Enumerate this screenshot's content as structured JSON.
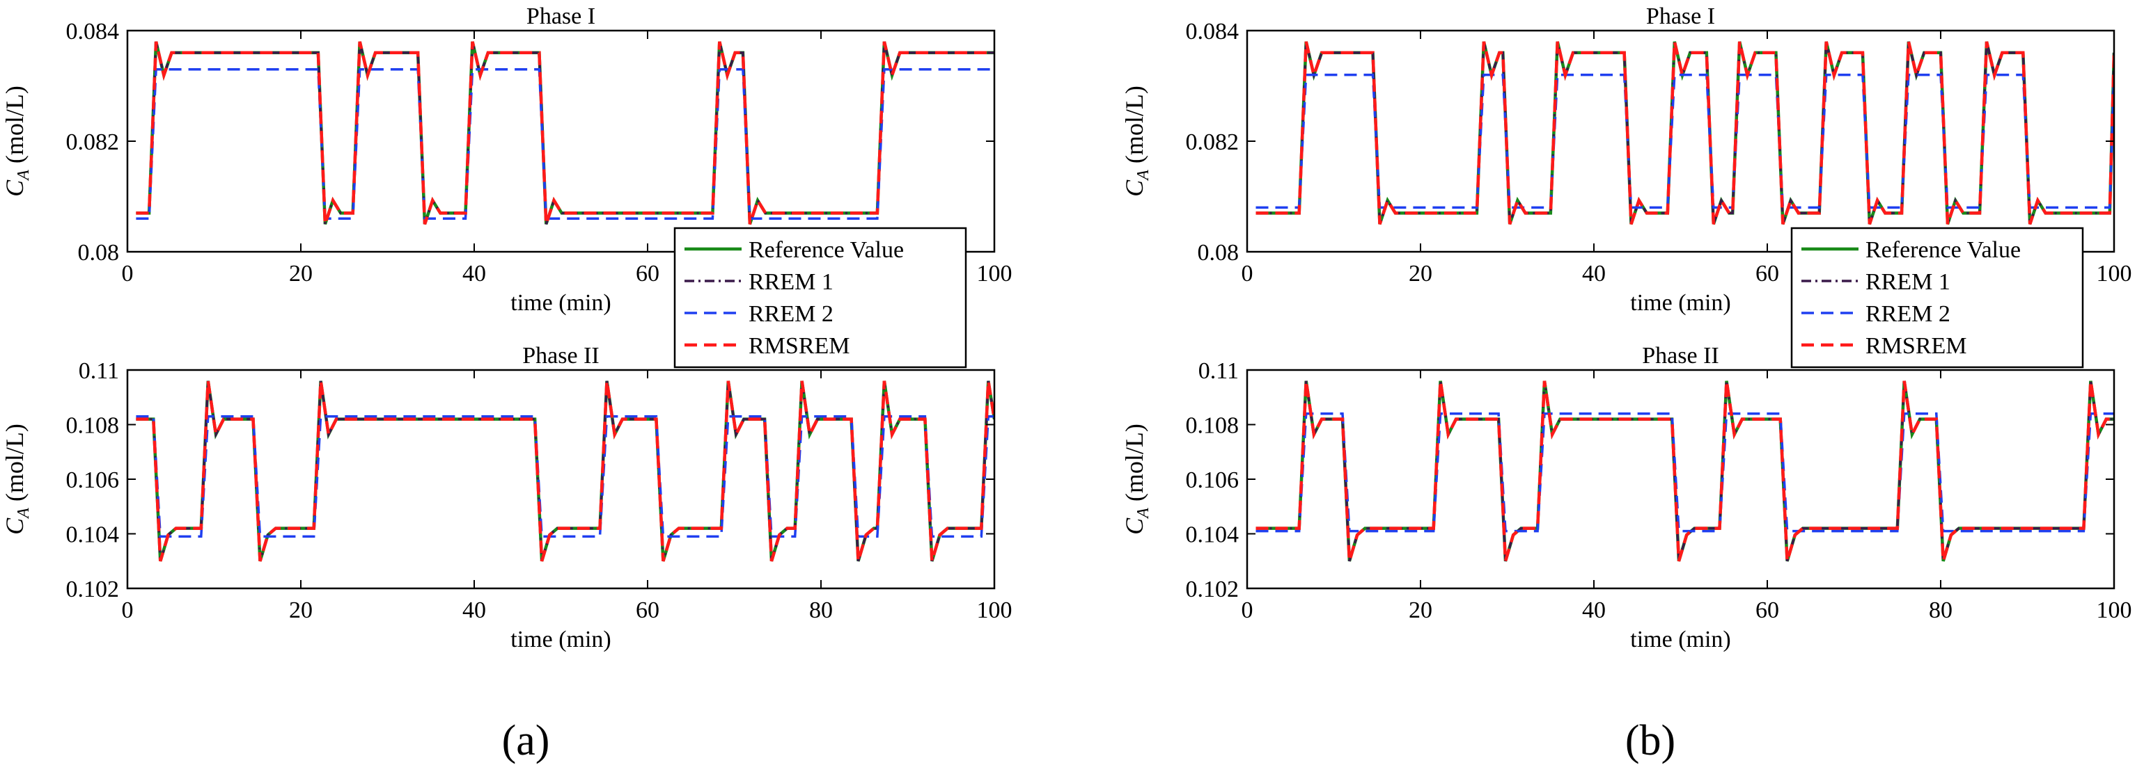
{
  "colors": {
    "reference": "#1a8a1a",
    "rrem1": "#3a1a4a",
    "rrem2": "#1f3ff0",
    "rmsrem": "#ff1a1a"
  },
  "panel_labels": [
    "(a)",
    "(b)"
  ],
  "legend": {
    "items": [
      {
        "label": "Reference Value",
        "key": "reference",
        "style": "solid"
      },
      {
        "label": "RREM 1",
        "key": "rrem1",
        "style": "dashdot"
      },
      {
        "label": "RREM 2",
        "key": "rrem2",
        "style": "dashed"
      },
      {
        "label": "RMSREM",
        "key": "rmsrem",
        "style": "dashed"
      }
    ]
  },
  "chart_data": [
    {
      "type": "line",
      "panel": "a",
      "title": "Phase I",
      "xlabel": "time (min)",
      "ylabel_main": "C",
      "ylabel_sub": "A",
      "ylabel_unit": " (mol/L)",
      "xlim": [
        0,
        100
      ],
      "ylim": [
        0.08,
        0.084
      ],
      "xticks": [
        0,
        20,
        40,
        60,
        80,
        100
      ],
      "yticks": [
        0.08,
        0.082,
        0.084
      ],
      "xtick_labels": [
        "0",
        "20",
        "40",
        "60",
        "80",
        "100"
      ],
      "ytick_labels": [
        "0.08",
        "0.082",
        "0.084"
      ],
      "low": 0.0807,
      "high": 0.0836,
      "rrem2_low": 0.0806,
      "rrem2_high": 0.0833,
      "overshoot_up": 0.0838,
      "overshoot_down": 0.0805,
      "start": "low",
      "switches": [
        2.5,
        22,
        26,
        33.5,
        39,
        47.5,
        67.5,
        71,
        86.5
      ],
      "legend": true
    },
    {
      "type": "line",
      "panel": "a",
      "title": "Phase II",
      "xlabel": "time (min)",
      "ylabel_main": "C",
      "ylabel_sub": "A",
      "ylabel_unit": " (mol/L)",
      "xlim": [
        0,
        100
      ],
      "ylim": [
        0.102,
        0.11
      ],
      "xticks": [
        0,
        20,
        40,
        60,
        80,
        100
      ],
      "yticks": [
        0.102,
        0.104,
        0.106,
        0.108,
        0.11
      ],
      "xtick_labels": [
        "0",
        "20",
        "40",
        "60",
        "80",
        "100"
      ],
      "ytick_labels": [
        "0.102",
        "0.104",
        "0.106",
        "0.108",
        "0.11"
      ],
      "low": 0.1042,
      "high": 0.1082,
      "rrem2_low": 0.1039,
      "rrem2_high": 0.1083,
      "overshoot_up": 0.1096,
      "overshoot_down": 0.103,
      "start": "high",
      "switches": [
        3,
        8.5,
        14.5,
        21.5,
        47,
        54.5,
        61,
        68.5,
        73.5,
        77,
        83.5,
        86.5,
        92,
        98.5
      ],
      "legend": false
    },
    {
      "type": "line",
      "panel": "b",
      "title": "Phase I",
      "xlabel": "time (min)",
      "ylabel_main": "C",
      "ylabel_sub": "A",
      "ylabel_unit": " (mol/L)",
      "xlim": [
        0,
        100
      ],
      "ylim": [
        0.08,
        0.084
      ],
      "xticks": [
        0,
        20,
        40,
        60,
        80,
        100
      ],
      "yticks": [
        0.08,
        0.082,
        0.084
      ],
      "xtick_labels": [
        "0",
        "20",
        "40",
        "60",
        "80",
        "100"
      ],
      "ytick_labels": [
        "0.08",
        "0.082",
        "0.084"
      ],
      "low": 0.0807,
      "high": 0.0836,
      "rrem2_low": 0.0808,
      "rrem2_high": 0.0832,
      "overshoot_up": 0.0838,
      "overshoot_down": 0.0805,
      "start": "low",
      "switches": [
        6,
        14.5,
        26.5,
        29.5,
        35,
        43.5,
        48.5,
        53,
        56,
        61,
        66,
        71,
        75.5,
        80,
        84.5,
        89.5,
        99.5
      ],
      "legend": true
    },
    {
      "type": "line",
      "panel": "b",
      "title": "Phase II",
      "xlabel": "time (min)",
      "ylabel_main": "C",
      "ylabel_sub": "A",
      "ylabel_unit": " (mol/L)",
      "xlim": [
        0,
        100
      ],
      "ylim": [
        0.102,
        0.11
      ],
      "xticks": [
        0,
        20,
        40,
        60,
        80,
        100
      ],
      "yticks": [
        0.102,
        0.104,
        0.106,
        0.108,
        0.11
      ],
      "xtick_labels": [
        "0",
        "20",
        "40",
        "60",
        "80",
        "100"
      ],
      "ytick_labels": [
        "0.102",
        "0.104",
        "0.106",
        "0.108",
        "0.11"
      ],
      "low": 0.1042,
      "high": 0.1082,
      "rrem2_low": 0.1041,
      "rrem2_high": 0.1084,
      "overshoot_up": 0.1096,
      "overshoot_down": 0.103,
      "start": "low",
      "switches": [
        6,
        11,
        21.5,
        29,
        33.5,
        49,
        54.5,
        61.5,
        75,
        79.5,
        96.5
      ],
      "legend": false
    }
  ]
}
